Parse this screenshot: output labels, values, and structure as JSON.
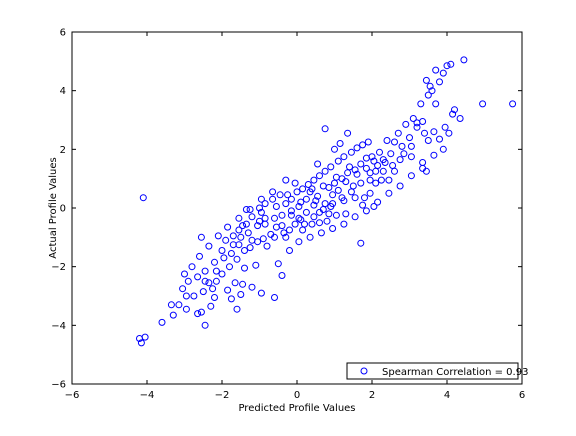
{
  "chart_data": {
    "type": "scatter",
    "title": "",
    "xlabel": "Predicted Profile Values",
    "ylabel": "Actual Profile Values",
    "xlim": [
      -6,
      6
    ],
    "ylim": [
      -6,
      6
    ],
    "xticks": [
      -6,
      -4,
      -2,
      0,
      2,
      4,
      6
    ],
    "yticks": [
      -6,
      -4,
      -2,
      0,
      2,
      4,
      6
    ],
    "xtick_labels": [
      "−6",
      "−4",
      "−2",
      "0",
      "2",
      "4",
      "6"
    ],
    "ytick_labels": [
      "−6",
      "−4",
      "−2",
      "0",
      "2",
      "4",
      "6"
    ],
    "grid": false,
    "legend_position": "bottom-right",
    "marker": "open-circle",
    "marker_color": "#0000ff",
    "axis_color": "#000000",
    "series": [
      {
        "name": "Spearman Correlation = 0.93",
        "points": [
          [
            -4.1,
            0.35
          ],
          [
            -4.15,
            -4.6
          ],
          [
            -4.2,
            -4.45
          ],
          [
            -4.05,
            -4.4
          ],
          [
            -3.6,
            -3.9
          ],
          [
            -3.35,
            -3.3
          ],
          [
            -3.3,
            -3.65
          ],
          [
            -3.15,
            -3.3
          ],
          [
            -2.95,
            -3.45
          ],
          [
            -2.95,
            -3.0
          ],
          [
            -2.75,
            -3.0
          ],
          [
            -2.65,
            -3.6
          ],
          [
            -2.55,
            -3.55
          ],
          [
            -2.45,
            -4.0
          ],
          [
            -2.2,
            -3.05
          ],
          [
            -3.0,
            -2.25
          ],
          [
            -2.55,
            -1.0
          ],
          [
            -2.45,
            -2.5
          ],
          [
            -2.25,
            -2.75
          ],
          [
            -2.15,
            -2.15
          ],
          [
            -1.85,
            -2.8
          ],
          [
            -1.65,
            -2.55
          ],
          [
            -1.6,
            -3.45
          ],
          [
            -1.45,
            -2.6
          ],
          [
            -1.4,
            -2.05
          ],
          [
            -1.2,
            -2.7
          ],
          [
            -0.95,
            -2.9
          ],
          [
            -0.6,
            -3.05
          ],
          [
            -0.4,
            -2.3
          ],
          [
            -1.1,
            -1.95
          ],
          [
            -1.75,
            -1.55
          ],
          [
            -1.55,
            -1.25
          ],
          [
            -1.45,
            -0.6
          ],
          [
            -1.35,
            -0.05
          ],
          [
            -1.2,
            -1.1
          ],
          [
            -1.0,
            -0.45
          ],
          [
            -0.95,
            -0.15
          ],
          [
            -0.85,
            -0.55
          ],
          [
            -0.8,
            -1.3
          ],
          [
            -0.6,
            -1.0
          ],
          [
            -0.55,
            0.05
          ],
          [
            -0.4,
            -0.6
          ],
          [
            -0.3,
            -1.0
          ],
          [
            -0.25,
            0.45
          ],
          [
            -0.15,
            -0.25
          ],
          [
            -0.05,
            0.85
          ],
          [
            0.05,
            -0.35
          ],
          [
            0.1,
            0.2
          ],
          [
            0.15,
            -0.75
          ],
          [
            0.25,
            -0.15
          ],
          [
            0.35,
            0.55
          ],
          [
            0.4,
            -0.55
          ],
          [
            0.5,
            0.25
          ],
          [
            0.6,
            -0.15
          ],
          [
            0.7,
            0.75
          ],
          [
            0.75,
            0.15
          ],
          [
            0.85,
            -0.2
          ],
          [
            0.95,
            0.45
          ],
          [
            1.05,
            1.05
          ],
          [
            1.1,
            0.6
          ],
          [
            1.25,
            0.25
          ],
          [
            1.3,
            0.9
          ],
          [
            1.4,
            1.4
          ],
          [
            1.5,
            0.75
          ],
          [
            1.6,
            1.15
          ],
          [
            1.7,
            -1.2
          ],
          [
            1.75,
            0.1
          ],
          [
            1.85,
            1.7
          ],
          [
            1.95,
            0.95
          ],
          [
            2.0,
            1.75
          ],
          [
            2.1,
            1.25
          ],
          [
            2.2,
            1.9
          ],
          [
            2.3,
            1.65
          ],
          [
            2.4,
            2.3
          ],
          [
            2.5,
            1.85
          ],
          [
            2.6,
            2.25
          ],
          [
            2.7,
            2.55
          ],
          [
            2.8,
            2.1
          ],
          [
            2.9,
            2.85
          ],
          [
            3.0,
            2.4
          ],
          [
            3.1,
            3.05
          ],
          [
            3.2,
            2.75
          ],
          [
            3.3,
            3.55
          ],
          [
            3.35,
            2.95
          ],
          [
            3.5,
            3.85
          ],
          [
            3.6,
            4.0
          ],
          [
            3.7,
            3.55
          ],
          [
            3.8,
            4.3
          ],
          [
            3.9,
            4.6
          ],
          [
            4.0,
            4.85
          ],
          [
            4.1,
            4.9
          ],
          [
            4.45,
            5.05
          ],
          [
            3.45,
            4.35
          ],
          [
            3.55,
            4.15
          ],
          [
            3.7,
            4.7
          ],
          [
            3.2,
            2.9
          ],
          [
            3.4,
            2.55
          ],
          [
            3.5,
            2.3
          ],
          [
            3.65,
            2.6
          ],
          [
            3.8,
            2.35
          ],
          [
            3.95,
            2.75
          ],
          [
            4.05,
            2.55
          ],
          [
            4.15,
            3.2
          ],
          [
            4.2,
            3.35
          ],
          [
            4.35,
            3.05
          ],
          [
            4.95,
            3.55
          ],
          [
            5.75,
            3.55
          ],
          [
            2.6,
            1.25
          ],
          [
            2.75,
            1.65
          ],
          [
            2.85,
            1.85
          ],
          [
            3.05,
            1.75
          ],
          [
            3.35,
            1.55
          ],
          [
            3.45,
            1.25
          ],
          [
            3.05,
            2.1
          ],
          [
            2.45,
            0.95
          ],
          [
            2.3,
            1.25
          ],
          [
            2.25,
            0.95
          ],
          [
            2.1,
            0.85
          ],
          [
            1.95,
            0.5
          ],
          [
            1.8,
            0.35
          ],
          [
            2.05,
            0.05
          ],
          [
            1.55,
            0.35
          ],
          [
            1.3,
            -0.2
          ],
          [
            1.05,
            -0.25
          ],
          [
            0.9,
            0.05
          ],
          [
            0.8,
            -0.45
          ],
          [
            0.6,
            -0.5
          ],
          [
            0.45,
            -0.3
          ],
          [
            0.2,
            -0.55
          ],
          [
            0.1,
            -0.4
          ],
          [
            -0.05,
            -0.55
          ],
          [
            -0.2,
            -0.75
          ],
          [
            -0.35,
            -0.85
          ],
          [
            -0.55,
            -0.65
          ],
          [
            -0.7,
            -0.9
          ],
          [
            -0.9,
            -1.05
          ],
          [
            -1.05,
            -1.15
          ],
          [
            -1.25,
            -1.35
          ],
          [
            -1.4,
            -1.45
          ],
          [
            -1.6,
            -1.75
          ],
          [
            -1.8,
            -2.0
          ],
          [
            -2.0,
            -2.25
          ],
          [
            -2.15,
            -2.5
          ],
          [
            -2.35,
            -2.55
          ],
          [
            -2.5,
            -2.85
          ],
          [
            -2.0,
            -1.45
          ],
          [
            -1.9,
            -1.1
          ],
          [
            -1.7,
            -0.95
          ],
          [
            -1.55,
            -0.75
          ],
          [
            -1.35,
            -0.55
          ],
          [
            -1.2,
            -0.3
          ],
          [
            -1.0,
            0.0
          ],
          [
            -0.85,
            0.15
          ],
          [
            -0.65,
            0.3
          ],
          [
            -0.45,
            0.45
          ],
          [
            -0.3,
            0.15
          ],
          [
            -0.15,
            0.3
          ],
          [
            0.0,
            0.55
          ],
          [
            0.15,
            0.65
          ],
          [
            0.3,
            0.8
          ],
          [
            0.45,
            0.95
          ],
          [
            0.6,
            1.1
          ],
          [
            0.75,
            1.25
          ],
          [
            0.9,
            1.4
          ],
          [
            1.1,
            1.6
          ],
          [
            1.25,
            1.75
          ],
          [
            1.45,
            1.9
          ],
          [
            1.6,
            2.05
          ],
          [
            1.75,
            2.15
          ],
          [
            1.9,
            2.25
          ],
          [
            1.35,
            2.55
          ],
          [
            0.75,
            2.7
          ],
          [
            1.0,
            2.0
          ],
          [
            1.15,
            2.2
          ],
          [
            0.55,
            1.5
          ],
          [
            -0.3,
            0.95
          ],
          [
            -0.65,
            0.55
          ],
          [
            -0.95,
            0.3
          ],
          [
            -1.25,
            -0.05
          ],
          [
            -1.55,
            -0.35
          ],
          [
            -1.85,
            -0.65
          ],
          [
            -2.1,
            -0.95
          ],
          [
            -2.35,
            -1.3
          ],
          [
            -2.6,
            -1.65
          ],
          [
            -2.8,
            -2.0
          ],
          [
            -2.9,
            -2.5
          ],
          [
            -3.05,
            -2.75
          ],
          [
            -2.3,
            -3.35
          ],
          [
            -1.75,
            -3.1
          ],
          [
            -1.5,
            -2.95
          ],
          [
            -0.5,
            -1.9
          ],
          [
            -0.2,
            -1.45
          ],
          [
            0.05,
            -1.15
          ],
          [
            0.35,
            -1.0
          ],
          [
            0.65,
            -0.85
          ],
          [
            0.95,
            -0.7
          ],
          [
            1.25,
            -0.55
          ],
          [
            1.55,
            -0.3
          ],
          [
            1.85,
            -0.1
          ],
          [
            2.15,
            0.2
          ],
          [
            2.45,
            0.5
          ],
          [
            2.75,
            0.75
          ],
          [
            3.05,
            1.1
          ],
          [
            3.35,
            1.35
          ],
          [
            3.65,
            1.8
          ],
          [
            3.9,
            2.0
          ],
          [
            2.35,
            1.55
          ],
          [
            2.55,
            1.45
          ],
          [
            2.15,
            1.45
          ],
          [
            1.95,
            1.2
          ],
          [
            1.7,
            0.85
          ],
          [
            1.45,
            0.55
          ],
          [
            1.2,
            0.35
          ],
          [
            0.95,
            0.15
          ],
          [
            0.7,
            -0.05
          ],
          [
            0.45,
            0.1
          ],
          [
            0.25,
            0.3
          ],
          [
            0.05,
            0.05
          ],
          [
            -0.15,
            -0.1
          ],
          [
            -0.4,
            -0.25
          ],
          [
            -0.6,
            -0.35
          ],
          [
            -0.85,
            -0.35
          ],
          [
            -1.05,
            -0.6
          ],
          [
            -1.3,
            -0.85
          ],
          [
            -1.5,
            -1.0
          ],
          [
            -1.7,
            -1.25
          ],
          [
            -1.95,
            -1.7
          ],
          [
            -2.2,
            -1.85
          ],
          [
            -2.45,
            -2.15
          ],
          [
            -2.65,
            -2.35
          ],
          [
            0.4,
            0.65
          ],
          [
            0.55,
            0.4
          ],
          [
            0.85,
            0.7
          ],
          [
            1.0,
            0.85
          ],
          [
            1.2,
            1.0
          ],
          [
            1.35,
            1.2
          ],
          [
            1.55,
            1.3
          ],
          [
            1.7,
            1.5
          ],
          [
            1.85,
            1.35
          ],
          [
            2.05,
            1.6
          ]
        ]
      }
    ]
  }
}
